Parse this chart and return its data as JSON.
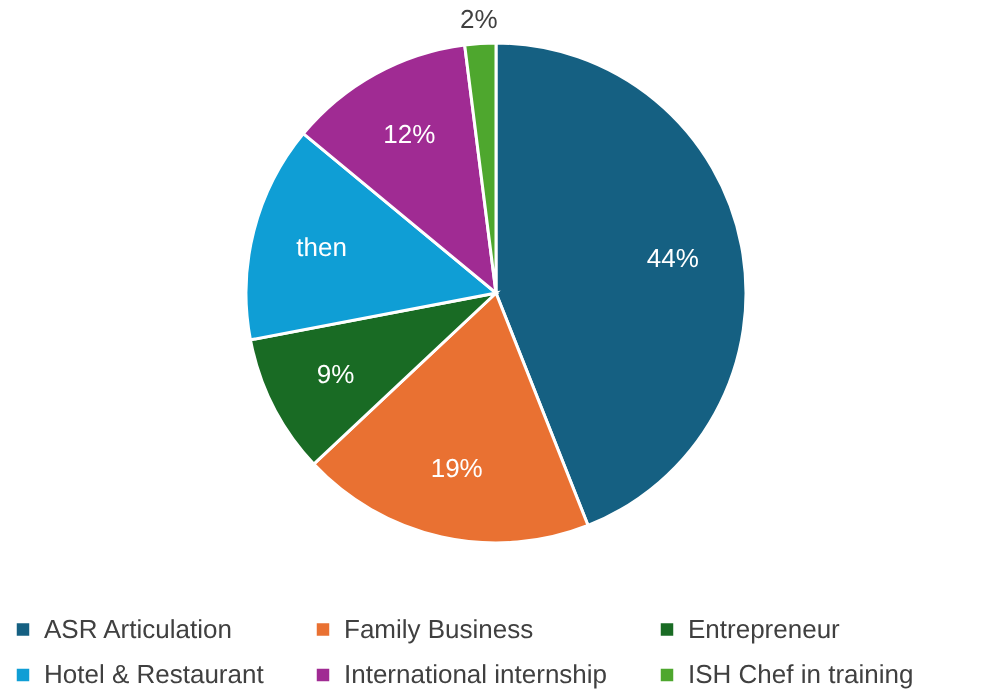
{
  "chart_data": {
    "type": "pie",
    "categories": [
      "ASR Articulation",
      "Family Business",
      "Entrepreneur",
      "Hotel & Restaurant",
      "International internship",
      "ISH Chef in training"
    ],
    "values": [
      44,
      19,
      9,
      14,
      12,
      2
    ],
    "colors": [
      "#156082",
      "#e97132",
      "#196b24",
      "#0f9ed5",
      "#a02b93",
      "#4ea72e"
    ],
    "value_labels": [
      "44%",
      "19%",
      "9%",
      "then",
      "12%",
      "2%"
    ],
    "legend": "bottom"
  }
}
